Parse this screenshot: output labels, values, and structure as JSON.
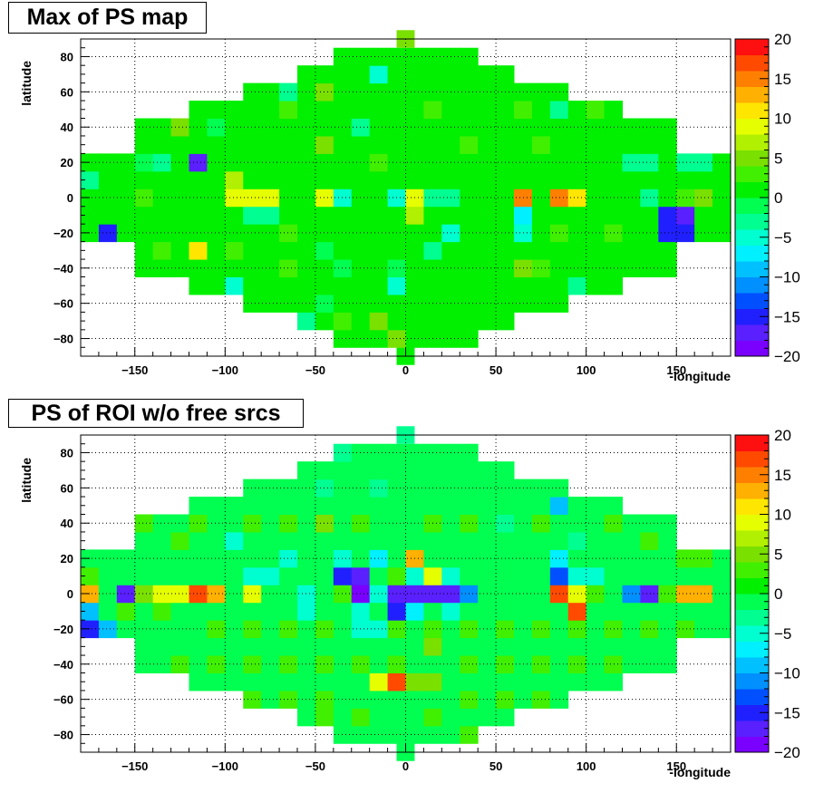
{
  "chart_data": [
    {
      "type": "heatmap",
      "title": "Max of PS map",
      "xlabel": "-longitude",
      "ylabel": "latitude",
      "xlim": [
        -180,
        180
      ],
      "ylim": [
        -90,
        90
      ],
      "x_ticks": [
        -150,
        -100,
        -50,
        0,
        50,
        100,
        150
      ],
      "y_ticks": [
        -80,
        -60,
        -40,
        -20,
        0,
        20,
        40,
        60,
        80
      ],
      "color_scale": [
        -20,
        20
      ],
      "color_ticks": [
        20,
        15,
        10,
        5,
        0,
        -5,
        -10,
        -15,
        -20
      ],
      "grid": true,
      "bin_width": [
        10,
        10
      ],
      "background_value": 0,
      "cells": [
        [
          -110,
          20,
          -17
        ],
        [
          -160,
          -20,
          -16
        ],
        [
          150,
          -10,
          -16
        ],
        [
          160,
          -10,
          -17
        ],
        [
          150,
          -20,
          -15
        ],
        [
          160,
          -20,
          -16
        ],
        [
          70,
          0,
          15
        ],
        [
          90,
          0,
          15
        ],
        [
          100,
          0,
          10
        ],
        [
          -80,
          0,
          9
        ],
        [
          -70,
          0,
          9
        ],
        [
          -40,
          0,
          9
        ],
        [
          10,
          0,
          8
        ],
        [
          -110,
          -30,
          10
        ],
        [
          -90,
          10,
          7
        ],
        [
          -90,
          0,
          8
        ],
        [
          10,
          -10,
          7
        ],
        [
          -180,
          -20,
          -6
        ],
        [
          -30,
          0,
          -6
        ],
        [
          0,
          0,
          -5
        ],
        [
          20,
          0,
          -4
        ],
        [
          30,
          0,
          -4
        ],
        [
          140,
          0,
          -3
        ],
        [
          70,
          -10,
          -8
        ],
        [
          70,
          -20,
          -5
        ],
        [
          30,
          -20,
          -5
        ],
        [
          -10,
          70,
          -5
        ],
        [
          -60,
          60,
          -3
        ],
        [
          -70,
          -10,
          -3
        ],
        [
          -80,
          -10,
          -3
        ],
        [
          140,
          20,
          -4
        ],
        [
          160,
          20,
          -3
        ],
        [
          170,
          20,
          -3
        ],
        [
          130,
          20,
          -3
        ],
        [
          -130,
          20,
          -3
        ],
        [
          -170,
          10,
          -3
        ],
        [
          -20,
          40,
          -3
        ],
        [
          90,
          50,
          -3
        ],
        [
          -40,
          -30,
          -2
        ],
        [
          -30,
          -40,
          -2
        ],
        [
          0,
          -50,
          -6
        ],
        [
          -90,
          -50,
          -5
        ],
        [
          -50,
          -70,
          -4
        ],
        [
          100,
          -50,
          -3
        ],
        [
          0,
          -40,
          -2
        ],
        [
          -40,
          -60,
          -2
        ],
        [
          20,
          -30,
          -3
        ],
        [
          -140,
          20,
          -2
        ],
        [
          -100,
          40,
          -2
        ],
        [
          -140,
          0,
          2
        ],
        [
          -130,
          -30,
          3
        ],
        [
          0,
          90,
          5
        ],
        [
          -60,
          50,
          3
        ],
        [
          -40,
          60,
          4
        ],
        [
          20,
          50,
          3
        ],
        [
          -120,
          40,
          4
        ],
        [
          70,
          50,
          3
        ],
        [
          110,
          50,
          3
        ],
        [
          -40,
          30,
          4
        ],
        [
          -10,
          20,
          3
        ],
        [
          40,
          30,
          3
        ],
        [
          80,
          30,
          3
        ],
        [
          -90,
          -30,
          3
        ],
        [
          -60,
          -20,
          3
        ],
        [
          -10,
          -70,
          4
        ],
        [
          -30,
          -70,
          3
        ],
        [
          70,
          -40,
          4
        ],
        [
          80,
          -40,
          3
        ],
        [
          -60,
          -40,
          3
        ],
        [
          120,
          -20,
          3
        ],
        [
          90,
          -20,
          3
        ],
        [
          -170,
          30,
          4
        ],
        [
          -160,
          30,
          4
        ],
        [
          170,
          30,
          4
        ],
        [
          -150,
          40,
          3
        ],
        [
          160,
          0,
          3
        ],
        [
          170,
          0,
          4
        ],
        [
          0,
          -80,
          4
        ]
      ]
    },
    {
      "type": "heatmap",
      "title": "PS of ROI w/o free srcs",
      "xlabel": "-longitude",
      "ylabel": "latitude",
      "xlim": [
        -180,
        180
      ],
      "ylim": [
        -90,
        90
      ],
      "x_ticks": [
        -150,
        -100,
        -50,
        0,
        50,
        100,
        150
      ],
      "y_ticks": [
        -80,
        -60,
        -40,
        -20,
        0,
        20,
        40,
        60,
        80
      ],
      "color_scale": [
        -20,
        20
      ],
      "color_ticks": [
        20,
        15,
        10,
        5,
        0,
        -5,
        -10,
        -15,
        -20
      ],
      "grid": true,
      "bin_width": [
        10,
        10
      ],
      "background_value": -2,
      "cells": [
        [
          -170,
          0,
          13
        ],
        [
          -150,
          0,
          -17
        ],
        [
          -140,
          0,
          4
        ],
        [
          -130,
          0,
          8
        ],
        [
          -120,
          0,
          9
        ],
        [
          -110,
          0,
          16
        ],
        [
          -100,
          0,
          13
        ],
        [
          -80,
          0,
          8
        ],
        [
          -50,
          0,
          -6
        ],
        [
          -30,
          0,
          2
        ],
        [
          -20,
          0,
          -19
        ],
        [
          -10,
          0,
          -5
        ],
        [
          0,
          0,
          -18
        ],
        [
          10,
          0,
          -18
        ],
        [
          20,
          0,
          -18
        ],
        [
          30,
          0,
          -18
        ],
        [
          40,
          0,
          -11
        ],
        [
          90,
          0,
          17
        ],
        [
          100,
          0,
          9
        ],
        [
          110,
          0,
          3
        ],
        [
          130,
          0,
          -11
        ],
        [
          140,
          0,
          -18
        ],
        [
          150,
          0,
          3
        ],
        [
          160,
          0,
          13
        ],
        [
          170,
          0,
          13
        ],
        [
          -30,
          10,
          -16
        ],
        [
          -20,
          10,
          -17
        ],
        [
          0,
          10,
          3
        ],
        [
          10,
          10,
          -6
        ],
        [
          20,
          10,
          9
        ],
        [
          30,
          10,
          -6
        ],
        [
          90,
          10,
          -13
        ],
        [
          100,
          10,
          -6
        ],
        [
          -80,
          10,
          -6
        ],
        [
          -70,
          10,
          -5
        ],
        [
          110,
          10,
          -6
        ],
        [
          10,
          20,
          13
        ],
        [
          -30,
          20,
          -5
        ],
        [
          -10,
          20,
          -7
        ],
        [
          90,
          20,
          -7
        ],
        [
          -170,
          -10,
          -9
        ],
        [
          -170,
          -20,
          -16
        ],
        [
          -160,
          -20,
          -9
        ],
        [
          100,
          -10,
          17
        ],
        [
          0,
          -10,
          -16
        ],
        [
          10,
          -10,
          -7
        ],
        [
          -20,
          -10,
          -6
        ],
        [
          -50,
          -10,
          -5
        ],
        [
          -20,
          -20,
          -6
        ],
        [
          -10,
          -20,
          -6
        ],
        [
          30,
          -10,
          -5
        ],
        [
          -10,
          60,
          -4
        ],
        [
          -90,
          30,
          -6
        ],
        [
          -60,
          20,
          -5
        ],
        [
          0,
          -50,
          17
        ],
        [
          -10,
          -50,
          9
        ],
        [
          10,
          -50,
          5
        ],
        [
          20,
          -50,
          5
        ],
        [
          90,
          50,
          -10
        ],
        [
          100,
          30,
          -4
        ],
        [
          -30,
          80,
          -4
        ],
        [
          -40,
          60,
          -4
        ],
        [
          -20,
          90,
          2
        ],
        [
          0,
          90,
          -3
        ],
        [
          60,
          40,
          -4
        ],
        [
          -140,
          40,
          3
        ],
        [
          -120,
          30,
          2
        ],
        [
          -110,
          40,
          2
        ],
        [
          -80,
          40,
          2
        ],
        [
          -60,
          40,
          3
        ],
        [
          -40,
          40,
          4
        ],
        [
          -20,
          40,
          3
        ],
        [
          20,
          40,
          3
        ],
        [
          40,
          40,
          2
        ],
        [
          80,
          40,
          2
        ],
        [
          120,
          40,
          3
        ],
        [
          140,
          30,
          3
        ],
        [
          160,
          20,
          2
        ],
        [
          170,
          20,
          2
        ],
        [
          -180,
          10,
          2
        ],
        [
          -170,
          10,
          2
        ],
        [
          -150,
          -10,
          2
        ],
        [
          -130,
          -10,
          2
        ],
        [
          -100,
          -20,
          3
        ],
        [
          -80,
          -20,
          2
        ],
        [
          -60,
          -20,
          3
        ],
        [
          -40,
          -20,
          2
        ],
        [
          0,
          -20,
          2
        ],
        [
          20,
          -20,
          2
        ],
        [
          40,
          -20,
          3
        ],
        [
          60,
          -20,
          2
        ],
        [
          80,
          -20,
          3
        ],
        [
          100,
          -20,
          2
        ],
        [
          120,
          -20,
          2
        ],
        [
          140,
          -20,
          3
        ],
        [
          160,
          -20,
          2
        ],
        [
          -120,
          -40,
          3
        ],
        [
          -100,
          -40,
          2
        ],
        [
          -80,
          -40,
          2
        ],
        [
          -60,
          -40,
          3
        ],
        [
          -40,
          -40,
          2
        ],
        [
          -20,
          -40,
          3
        ],
        [
          0,
          -40,
          2
        ],
        [
          20,
          -30,
          5
        ],
        [
          40,
          -40,
          2
        ],
        [
          60,
          -40,
          3
        ],
        [
          80,
          -40,
          2
        ],
        [
          100,
          -40,
          3
        ],
        [
          120,
          -40,
          2
        ],
        [
          -100,
          -60,
          3
        ],
        [
          -80,
          -60,
          2
        ],
        [
          -60,
          -60,
          2
        ],
        [
          -40,
          -60,
          3
        ],
        [
          40,
          -60,
          2
        ],
        [
          60,
          -60,
          3
        ],
        [
          80,
          -60,
          2
        ],
        [
          -40,
          -70,
          2
        ],
        [
          -20,
          -70,
          3
        ],
        [
          20,
          -70,
          2
        ],
        [
          40,
          -80,
          3
        ]
      ]
    }
  ]
}
